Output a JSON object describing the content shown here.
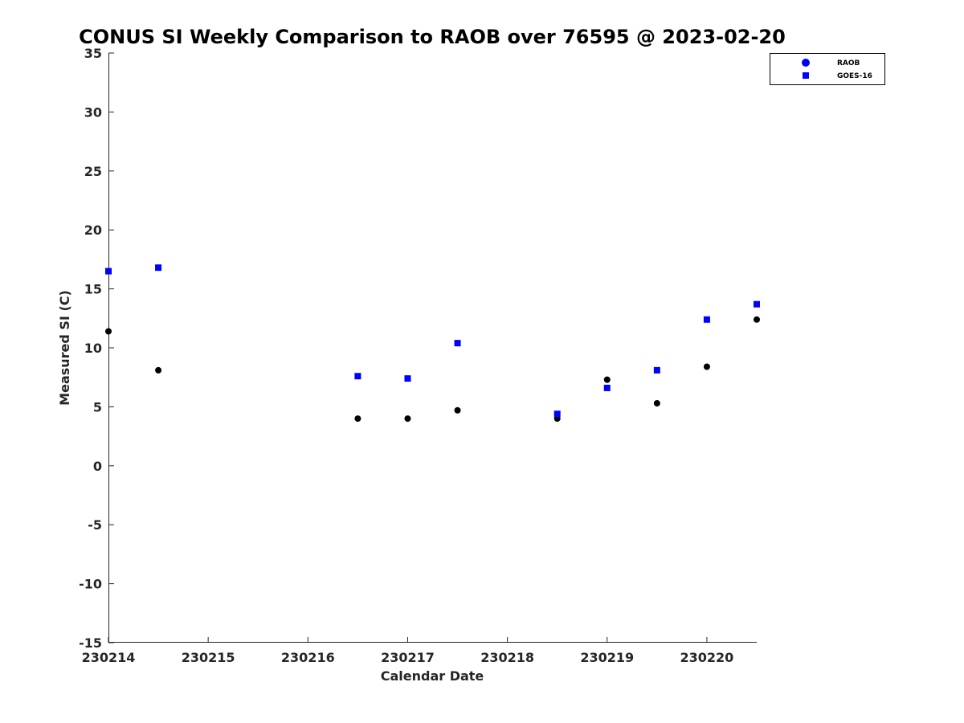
{
  "chart_data": {
    "type": "scatter",
    "title": "CONUS SI Weekly Comparison to RAOB over 76595 @ 2023-02-20",
    "xlabel": "Calendar Date",
    "ylabel": "Measured SI (C)",
    "xlim": [
      0,
      6.5
    ],
    "ylim": [
      -15,
      35
    ],
    "xticks": [
      0,
      1,
      2,
      3,
      4,
      5,
      6
    ],
    "xtick_labels": [
      "230214",
      "230215",
      "230216",
      "230217",
      "230218",
      "230219",
      "230220"
    ],
    "yticks": [
      -15,
      -10,
      -5,
      0,
      5,
      10,
      15,
      20,
      25,
      30,
      35
    ],
    "grid": false,
    "legend_position": "top-right",
    "series": [
      {
        "name": "RAOB",
        "marker": "circle",
        "color": "#000000",
        "legend_color": "#0000ff",
        "x": [
          0,
          0.5,
          2.5,
          3,
          3.5,
          4.5,
          5,
          5.5,
          6,
          6.5
        ],
        "y": [
          11.4,
          8.1,
          4.0,
          4.0,
          4.7,
          4.0,
          7.3,
          5.3,
          8.4,
          12.4
        ]
      },
      {
        "name": "GOES-16",
        "marker": "square",
        "color": "#0000ff",
        "legend_color": "#0000ff",
        "x": [
          0,
          0.5,
          2.5,
          3,
          3.5,
          4.5,
          5,
          5.5,
          6,
          6.5
        ],
        "y": [
          16.5,
          16.8,
          7.6,
          7.4,
          10.4,
          4.4,
          6.6,
          8.1,
          12.4,
          13.7
        ]
      }
    ]
  }
}
